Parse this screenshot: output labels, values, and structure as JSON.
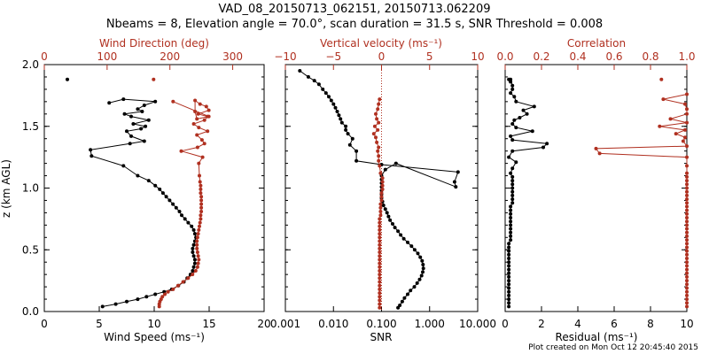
{
  "title": "VAD_08_20150713_062151, 20150713.062209",
  "subtitle": "Nbeams = 8, Elevation angle = 70.0°, scan duration = 31.5 s, SNR Threshold = 0.008",
  "footer": "Plot created on Mon Oct 12 20:45:40 2015",
  "colors": {
    "black": "#000000",
    "red": "#b03020"
  },
  "chart_data": [
    {
      "type": "scatter",
      "id": "wind",
      "ylabel": "z (km AGL)",
      "ylim": [
        0,
        2
      ],
      "yticks": [
        0.0,
        0.5,
        1.0,
        1.5,
        2.0
      ],
      "ytick_labels": [
        "0.0",
        "0.5",
        "1.0",
        "1.5",
        "2.0"
      ],
      "bottom_axis": {
        "label": "Wind Speed (ms⁻¹)",
        "range": [
          0,
          20
        ],
        "ticks": [
          0,
          5,
          10,
          15,
          20
        ],
        "tick_labels": [
          "0",
          "5",
          "10",
          "15",
          "20"
        ],
        "scale": "linear"
      },
      "top_axis": {
        "label": "Wind Direction (deg)",
        "range": [
          0,
          350
        ],
        "ticks": [
          0,
          100,
          200,
          300
        ],
        "tick_labels": [
          "0",
          "100",
          "200",
          "300"
        ],
        "scale": "linear"
      },
      "series": [
        {
          "axis": "bottom",
          "color": "#000000",
          "x": [
            5.3,
            6.5,
            7.5,
            8.5,
            9.3,
            10.1,
            10.9,
            11.6,
            12.2,
            12.7,
            13.0,
            13.3,
            13.5,
            13.6,
            13.7,
            13.7,
            13.6,
            13.5,
            13.5,
            13.6,
            13.7,
            13.8,
            13.7,
            13.6,
            13.4,
            13.1,
            12.8,
            12.5,
            12.3,
            12.0,
            11.7,
            11.4,
            11.1,
            10.8,
            10.5,
            10.1,
            9.5,
            8.5,
            7.2,
            4.3,
            4.2,
            7.8,
            9.1,
            7.9,
            7.5,
            8.8,
            9.2,
            8.1,
            9.5,
            7.9,
            7.3,
            8.9,
            8.5,
            9.1,
            10.1,
            7.2,
            5.9
          ],
          "y": [
            0.04,
            0.06,
            0.08,
            0.1,
            0.12,
            0.14,
            0.16,
            0.18,
            0.21,
            0.24,
            0.27,
            0.3,
            0.33,
            0.36,
            0.39,
            0.42,
            0.45,
            0.48,
            0.51,
            0.54,
            0.57,
            0.6,
            0.63,
            0.66,
            0.69,
            0.72,
            0.75,
            0.78,
            0.81,
            0.84,
            0.87,
            0.9,
            0.93,
            0.96,
            0.99,
            1.02,
            1.06,
            1.1,
            1.18,
            1.26,
            1.31,
            1.36,
            1.38,
            1.42,
            1.46,
            1.48,
            1.5,
            1.52,
            1.55,
            1.58,
            1.6,
            1.62,
            1.64,
            1.67,
            1.7,
            1.72,
            1.69
          ]
        },
        {
          "axis": "bottom",
          "color": "#000000",
          "connected": false,
          "x": [
            2.1
          ],
          "y": [
            1.88
          ]
        },
        {
          "axis": "top",
          "color": "#b03020",
          "x": [
            183,
            183,
            184,
            186,
            188,
            192,
            197,
            205,
            213,
            221,
            229,
            236,
            241,
            244,
            245,
            246,
            245,
            244,
            243,
            243,
            243,
            244,
            245,
            246,
            247,
            248,
            249,
            249,
            250,
            250,
            250,
            250,
            250,
            249,
            249,
            249,
            248,
            247,
            246,
            252,
            218,
            244,
            255,
            251,
            243,
            260,
            246,
            238,
            255,
            260,
            245,
            262,
            258,
            248,
            240,
            240,
            243,
            262,
            205
          ],
          "y": [
            0.04,
            0.06,
            0.08,
            0.1,
            0.12,
            0.14,
            0.16,
            0.18,
            0.21,
            0.24,
            0.27,
            0.3,
            0.33,
            0.36,
            0.39,
            0.42,
            0.45,
            0.48,
            0.51,
            0.54,
            0.57,
            0.6,
            0.63,
            0.66,
            0.69,
            0.72,
            0.75,
            0.78,
            0.81,
            0.84,
            0.87,
            0.9,
            0.93,
            0.96,
            0.99,
            1.02,
            1.05,
            1.1,
            1.2,
            1.25,
            1.3,
            1.33,
            1.36,
            1.39,
            1.43,
            1.46,
            1.49,
            1.52,
            1.55,
            1.58,
            1.6,
            1.63,
            1.66,
            1.68,
            1.71,
            1.62,
            1.56,
            1.58,
            1.7
          ]
        },
        {
          "axis": "top",
          "color": "#b03020",
          "connected": false,
          "x": [
            174
          ],
          "y": [
            1.88
          ]
        }
      ]
    },
    {
      "type": "scatter",
      "id": "vertical",
      "ylim": [
        0,
        2
      ],
      "bottom_axis": {
        "label": "SNR",
        "range": [
          0.001,
          10
        ],
        "ticks": [
          0.001,
          0.01,
          0.1,
          1,
          10
        ],
        "tick_labels": [
          "0.001",
          "0.010",
          "0.100",
          "1.000",
          "10.000"
        ],
        "scale": "log"
      },
      "top_axis": {
        "label": "Vertical velocity (ms⁻¹)",
        "range": [
          -10,
          10
        ],
        "ticks": [
          -10,
          -5,
          0,
          5,
          10
        ],
        "tick_labels": [
          "−10",
          "−5",
          "0",
          "5",
          "10"
        ],
        "scale": "linear"
      },
      "zero_line": {
        "axis": "top",
        "value": 0,
        "color": "#b03020",
        "style": "dotted"
      },
      "series": [
        {
          "axis": "bottom",
          "color": "#000000",
          "x": [
            0.22,
            0.24,
            0.27,
            0.3,
            0.35,
            0.4,
            0.48,
            0.55,
            0.62,
            0.68,
            0.72,
            0.74,
            0.73,
            0.7,
            0.64,
            0.57,
            0.49,
            0.42,
            0.35,
            0.29,
            0.25,
            0.22,
            0.19,
            0.17,
            0.15,
            0.14,
            0.13,
            0.12,
            0.11,
            0.105,
            0.1,
            0.1,
            0.1,
            0.1,
            0.1,
            0.1,
            0.1,
            0.12,
            0.2,
            3.5,
            3.3,
            3.9,
            0.1,
            0.03,
            0.03,
            0.022,
            0.025,
            0.02,
            0.018,
            0.018,
            0.015,
            0.014,
            0.013,
            0.012,
            0.011,
            0.01,
            0.009,
            0.008,
            0.007,
            0.006,
            0.005,
            0.004,
            0.003,
            0.002
          ],
          "y": [
            0.03,
            0.05,
            0.08,
            0.11,
            0.14,
            0.17,
            0.2,
            0.23,
            0.26,
            0.29,
            0.32,
            0.35,
            0.38,
            0.41,
            0.44,
            0.47,
            0.5,
            0.53,
            0.56,
            0.59,
            0.62,
            0.65,
            0.68,
            0.71,
            0.74,
            0.77,
            0.8,
            0.83,
            0.86,
            0.89,
            0.92,
            0.95,
            0.98,
            1.01,
            1.04,
            1.07,
            1.1,
            1.15,
            1.2,
            1.01,
            1.05,
            1.13,
            1.19,
            1.22,
            1.3,
            1.35,
            1.4,
            1.44,
            1.47,
            1.5,
            1.53,
            1.56,
            1.59,
            1.62,
            1.65,
            1.68,
            1.71,
            1.74,
            1.77,
            1.8,
            1.84,
            1.87,
            1.9,
            1.95
          ]
        },
        {
          "axis": "top",
          "color": "#b03020",
          "x": [
            -0.2,
            -0.2,
            -0.2,
            -0.2,
            -0.2,
            -0.2,
            -0.2,
            -0.2,
            -0.2,
            -0.2,
            -0.2,
            -0.2,
            -0.2,
            -0.2,
            -0.2,
            -0.2,
            -0.2,
            -0.2,
            -0.2,
            -0.2,
            -0.2,
            -0.2,
            -0.2,
            -0.2,
            -0.2,
            -0.1,
            -0.1,
            -0.1,
            -0.1,
            0.0,
            0.0,
            0.0,
            0.1,
            0.1,
            0.1,
            0.1,
            -0.1,
            -0.2,
            -0.3,
            -0.3,
            -0.4,
            -0.3,
            -0.5,
            -0.6,
            -0.8,
            -0.4,
            -0.7,
            -0.3,
            -0.5,
            -0.6,
            -0.4,
            -0.3,
            -0.2
          ],
          "y": [
            0.03,
            0.06,
            0.09,
            0.12,
            0.15,
            0.18,
            0.21,
            0.24,
            0.27,
            0.3,
            0.33,
            0.36,
            0.39,
            0.42,
            0.45,
            0.48,
            0.51,
            0.54,
            0.57,
            0.6,
            0.63,
            0.66,
            0.69,
            0.72,
            0.75,
            0.78,
            0.81,
            0.84,
            0.87,
            0.9,
            0.93,
            0.96,
            0.99,
            1.02,
            1.05,
            1.08,
            1.12,
            1.18,
            1.22,
            1.26,
            1.3,
            1.33,
            1.37,
            1.41,
            1.44,
            1.47,
            1.5,
            1.53,
            1.56,
            1.6,
            1.64,
            1.68,
            1.72
          ]
        }
      ]
    },
    {
      "type": "scatter",
      "id": "residual",
      "ylim": [
        0,
        2
      ],
      "bottom_axis": {
        "label": "Residual (ms⁻¹)",
        "range": [
          0,
          10
        ],
        "ticks": [
          0,
          2,
          4,
          6,
          8,
          10
        ],
        "tick_labels": [
          "0",
          "2",
          "4",
          "6",
          "8",
          "10"
        ],
        "scale": "linear"
      },
      "top_axis": {
        "label": "Correlation",
        "range": [
          0,
          1
        ],
        "ticks": [
          0,
          0.2,
          0.4,
          0.6,
          0.8,
          1.0
        ],
        "tick_labels": [
          "0.0",
          "0.2",
          "0.4",
          "0.6",
          "0.8",
          "1.0"
        ],
        "scale": "linear"
      },
      "series": [
        {
          "axis": "bottom",
          "color": "#000000",
          "x": [
            0.2,
            0.2,
            0.2,
            0.2,
            0.2,
            0.2,
            0.2,
            0.2,
            0.2,
            0.2,
            0.2,
            0.2,
            0.2,
            0.2,
            0.2,
            0.2,
            0.2,
            0.2,
            0.3,
            0.3,
            0.3,
            0.3,
            0.3,
            0.3,
            0.3,
            0.3,
            0.3,
            0.3,
            0.4,
            0.4,
            0.4,
            0.4,
            0.4,
            0.4,
            0.4,
            0.4,
            0.3,
            0.4,
            0.6,
            0.2,
            0.4,
            2.1,
            2.3,
            0.4,
            0.3,
            1.5,
            0.6,
            0.4,
            0.5,
            0.8,
            1.2,
            1.0,
            1.6,
            0.6,
            0.5,
            0.3,
            0.4,
            0.4,
            0.3,
            0.3
          ],
          "y": [
            0.04,
            0.07,
            0.1,
            0.13,
            0.16,
            0.19,
            0.22,
            0.25,
            0.28,
            0.31,
            0.34,
            0.37,
            0.4,
            0.43,
            0.46,
            0.49,
            0.52,
            0.55,
            0.58,
            0.61,
            0.64,
            0.67,
            0.7,
            0.73,
            0.76,
            0.79,
            0.82,
            0.85,
            0.88,
            0.91,
            0.94,
            0.97,
            1.0,
            1.03,
            1.06,
            1.09,
            1.12,
            1.16,
            1.21,
            1.25,
            1.3,
            1.33,
            1.36,
            1.39,
            1.42,
            1.46,
            1.49,
            1.52,
            1.55,
            1.57,
            1.6,
            1.63,
            1.66,
            1.7,
            1.74,
            1.77,
            1.8,
            1.83,
            1.88,
            1.86
          ]
        },
        {
          "axis": "top",
          "color": "#b03020",
          "x": [
            1.0,
            1.0,
            1.0,
            1.0,
            1.0,
            1.0,
            1.0,
            1.0,
            1.0,
            1.0,
            1.0,
            1.0,
            1.0,
            1.0,
            1.0,
            1.0,
            1.0,
            1.0,
            1.0,
            1.0,
            1.0,
            1.0,
            1.0,
            1.0,
            1.0,
            1.0,
            1.0,
            1.0,
            1.0,
            1.0,
            1.0,
            1.0,
            1.0,
            1.0,
            1.0,
            1.0,
            1.0,
            1.0,
            1.0,
            0.52,
            0.5,
            1.0,
            0.98,
            0.99,
            0.94,
            0.99,
            0.85,
            1.0,
            0.91,
            1.0,
            1.0,
            0.99,
            0.87,
            1.0
          ],
          "y": [
            0.04,
            0.07,
            0.1,
            0.13,
            0.16,
            0.19,
            0.22,
            0.25,
            0.28,
            0.31,
            0.34,
            0.37,
            0.4,
            0.43,
            0.46,
            0.49,
            0.52,
            0.55,
            0.58,
            0.61,
            0.64,
            0.67,
            0.7,
            0.73,
            0.76,
            0.79,
            0.82,
            0.85,
            0.88,
            0.91,
            0.94,
            0.97,
            1.0,
            1.03,
            1.06,
            1.09,
            1.12,
            1.18,
            1.25,
            1.28,
            1.32,
            1.34,
            1.38,
            1.41,
            1.44,
            1.47,
            1.5,
            1.53,
            1.56,
            1.6,
            1.64,
            1.68,
            1.72,
            1.76
          ]
        },
        {
          "axis": "top",
          "color": "#b03020",
          "connected": false,
          "x": [
            0.86
          ],
          "y": [
            1.88
          ]
        },
        {
          "axis": "bottom",
          "color": "#000000",
          "connected": false,
          "x": [
            0.2
          ],
          "y": [
            1.88
          ]
        }
      ]
    }
  ]
}
